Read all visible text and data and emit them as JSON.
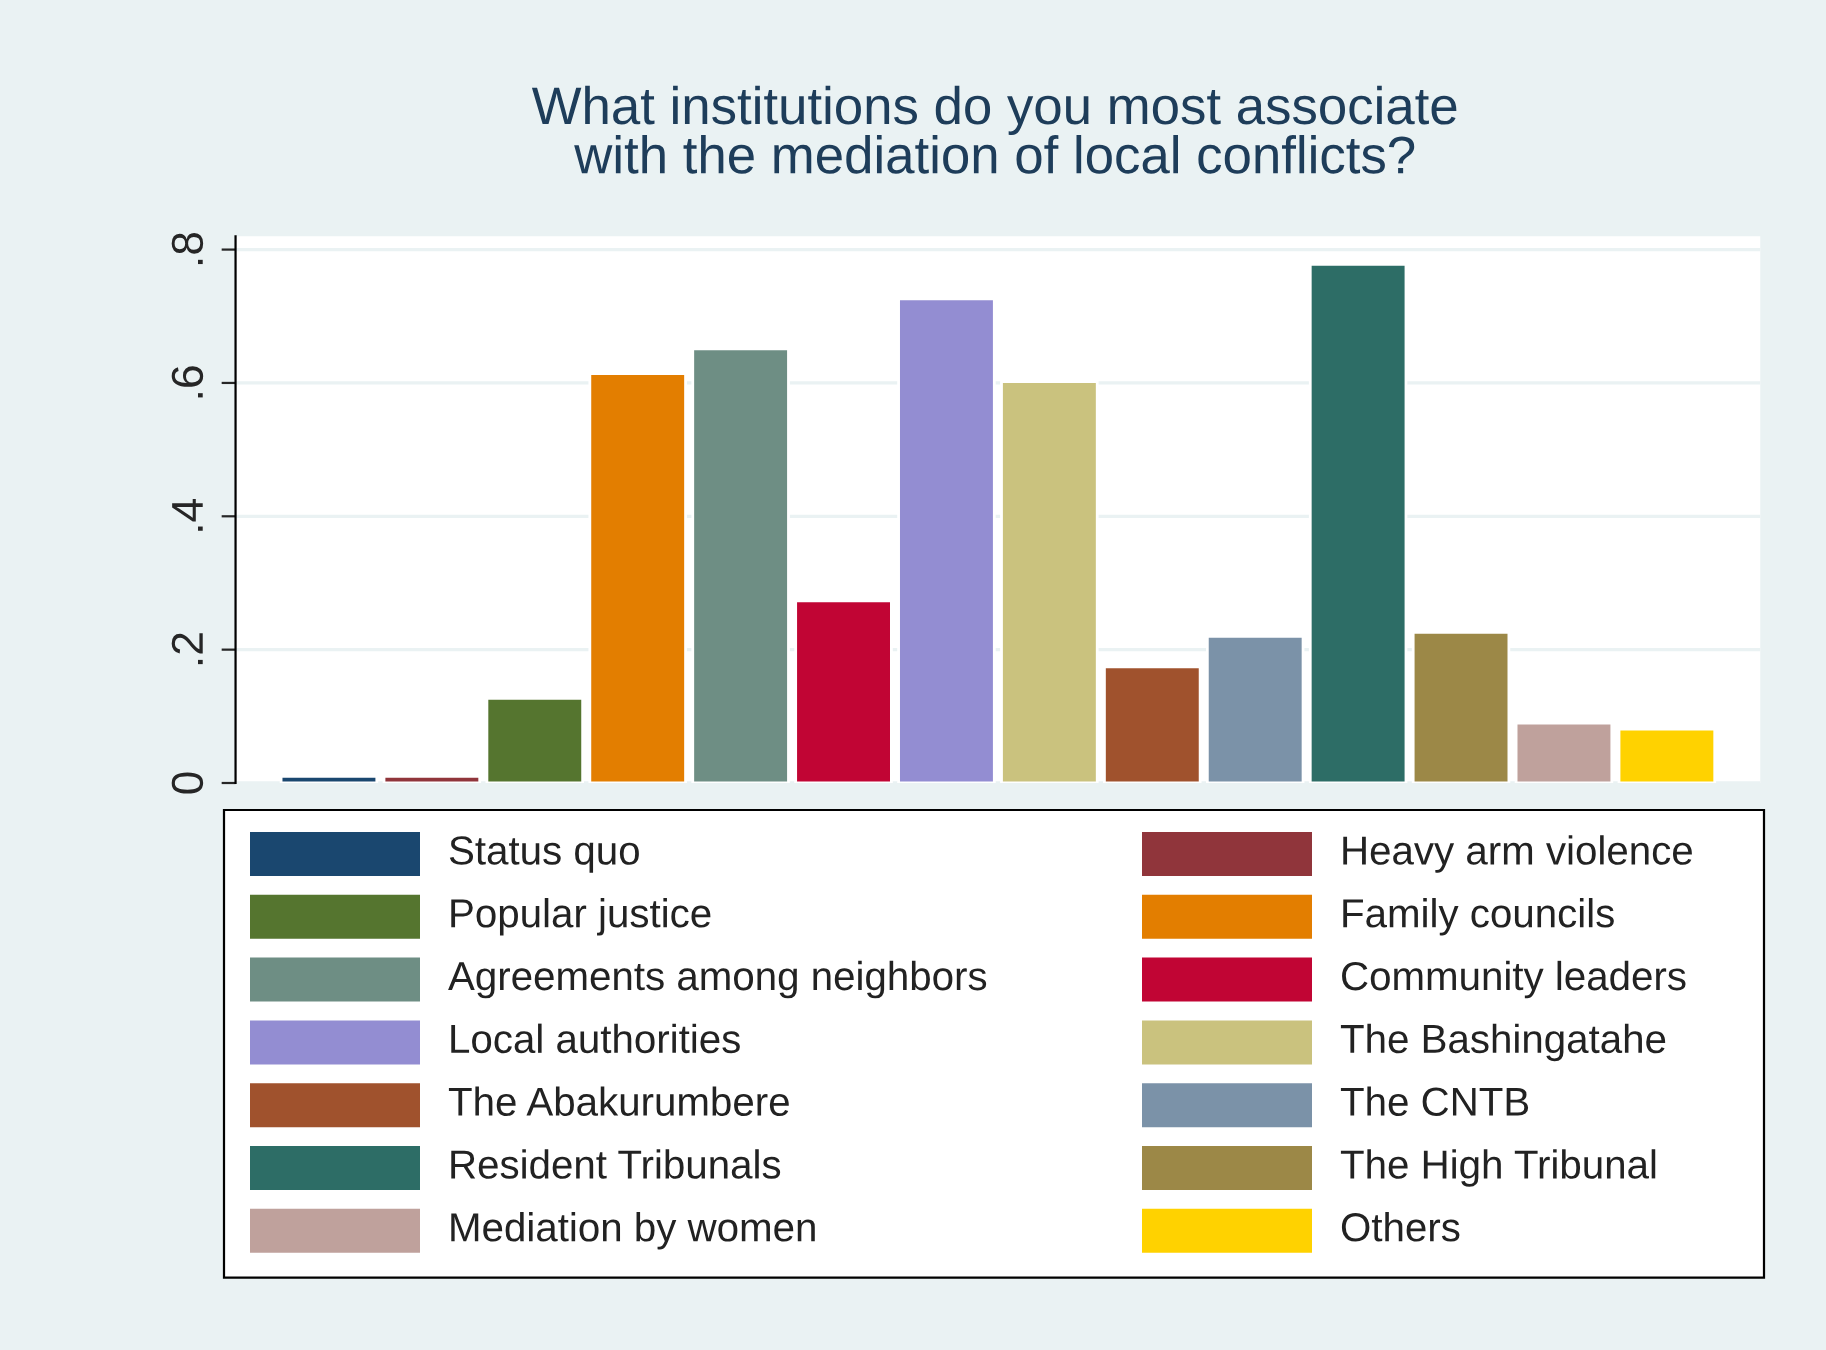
{
  "chart_data": {
    "type": "bar",
    "title": "What institutions do you most associate\nwith the mediation of local conflicts?",
    "categories": [
      null
    ],
    "series": [
      {
        "name": "Status quo",
        "color": "#1a476f",
        "values": [
          0.01
        ]
      },
      {
        "name": "Heavy arm violence",
        "color": "#90353b",
        "values": [
          0.01
        ]
      },
      {
        "name": "Popular justice",
        "color": "#55752f",
        "values": [
          0.127
        ]
      },
      {
        "name": "Family councils",
        "color": "#e37e00",
        "values": [
          0.614
        ]
      },
      {
        "name": "Agreements among neighbors",
        "color": "#6e8e84",
        "values": [
          0.651
        ]
      },
      {
        "name": "Community leaders",
        "color": "#c10534",
        "values": [
          0.273
        ]
      },
      {
        "name": "Local authorities",
        "color": "#938dd2",
        "values": [
          0.726
        ]
      },
      {
        "name": "The Bashingatahe",
        "color": "#cac27e",
        "values": [
          0.602
        ]
      },
      {
        "name": "The Abakurumbere",
        "color": "#a0522d",
        "values": [
          0.174
        ]
      },
      {
        "name": "The CNTB",
        "color": "#7b92a8",
        "values": [
          0.22
        ]
      },
      {
        "name": "Resident Tribunals",
        "color": "#2d6d66",
        "values": [
          0.778
        ]
      },
      {
        "name": "The High Tribunal",
        "color": "#9c8847",
        "values": [
          0.226
        ]
      },
      {
        "name": "Mediation by women",
        "color": "#bfa19c",
        "values": [
          0.09
        ]
      },
      {
        "name": "Others",
        "color": "#ffd200",
        "values": [
          0.081
        ]
      }
    ],
    "ylim": [
      0,
      0.82
    ],
    "yticks": [
      {
        "value": 0,
        "label": "0"
      },
      {
        "value": 0.2,
        "label": ".2"
      },
      {
        "value": 0.4,
        "label": ".4"
      },
      {
        "value": 0.6,
        "label": ".6"
      },
      {
        "value": 0.8,
        "label": ".8"
      }
    ],
    "grid": "y",
    "legend": "bottom"
  }
}
